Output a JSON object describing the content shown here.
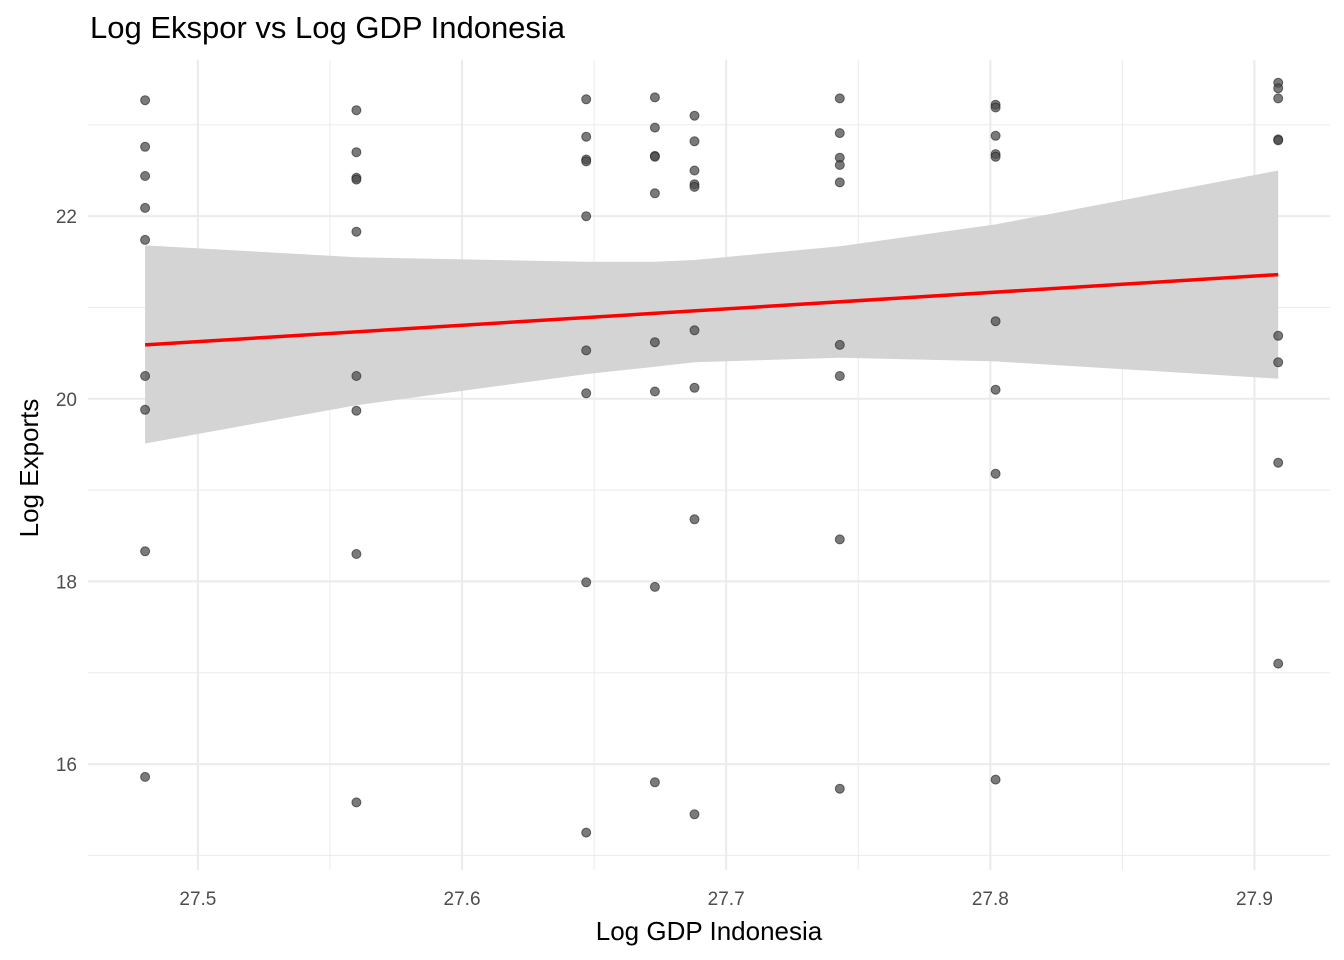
{
  "chart_data": {
    "type": "scatter",
    "title": "Log Ekspor vs Log GDP Indonesia",
    "xlabel": "Log GDP Indonesia",
    "ylabel": "Log Exports",
    "xlim": [
      27.4584,
      27.9286
    ],
    "ylim": [
      14.84,
      23.71
    ],
    "x_ticks": [
      27.5,
      27.6,
      27.7,
      27.8,
      27.9
    ],
    "x_tick_labels": [
      "27.5",
      "27.6",
      "27.7",
      "27.8",
      "27.9"
    ],
    "y_ticks": [
      16,
      18,
      20,
      22
    ],
    "y_tick_labels": [
      "16",
      "18",
      "20",
      "22"
    ],
    "grid": true,
    "legend": "none",
    "colors": {
      "points": "#4d4d4d",
      "fit_line": "#ff0000",
      "ribbon": "#d3d3d3",
      "grid": "#ebebeb"
    },
    "points": [
      {
        "x": 27.48,
        "y": 23.27
      },
      {
        "x": 27.48,
        "y": 22.76
      },
      {
        "x": 27.48,
        "y": 22.44
      },
      {
        "x": 27.48,
        "y": 22.09
      },
      {
        "x": 27.48,
        "y": 21.74
      },
      {
        "x": 27.48,
        "y": 20.25
      },
      {
        "x": 27.48,
        "y": 19.88
      },
      {
        "x": 27.48,
        "y": 18.33
      },
      {
        "x": 27.48,
        "y": 15.86
      },
      {
        "x": 27.56,
        "y": 23.16
      },
      {
        "x": 27.56,
        "y": 22.7
      },
      {
        "x": 27.56,
        "y": 22.42
      },
      {
        "x": 27.56,
        "y": 22.4
      },
      {
        "x": 27.56,
        "y": 21.83
      },
      {
        "x": 27.56,
        "y": 20.25
      },
      {
        "x": 27.56,
        "y": 19.87
      },
      {
        "x": 27.56,
        "y": 18.3
      },
      {
        "x": 27.56,
        "y": 15.58
      },
      {
        "x": 27.647,
        "y": 23.28
      },
      {
        "x": 27.647,
        "y": 22.87
      },
      {
        "x": 27.647,
        "y": 22.62
      },
      {
        "x": 27.647,
        "y": 22.6
      },
      {
        "x": 27.647,
        "y": 22.0
      },
      {
        "x": 27.647,
        "y": 20.53
      },
      {
        "x": 27.647,
        "y": 20.06
      },
      {
        "x": 27.647,
        "y": 17.99
      },
      {
        "x": 27.647,
        "y": 15.25
      },
      {
        "x": 27.673,
        "y": 23.3
      },
      {
        "x": 27.673,
        "y": 22.97
      },
      {
        "x": 27.673,
        "y": 22.66
      },
      {
        "x": 27.673,
        "y": 22.65
      },
      {
        "x": 27.673,
        "y": 22.25
      },
      {
        "x": 27.673,
        "y": 20.62
      },
      {
        "x": 27.673,
        "y": 20.08
      },
      {
        "x": 27.673,
        "y": 17.94
      },
      {
        "x": 27.673,
        "y": 15.8
      },
      {
        "x": 27.688,
        "y": 23.1
      },
      {
        "x": 27.688,
        "y": 22.82
      },
      {
        "x": 27.688,
        "y": 22.5
      },
      {
        "x": 27.688,
        "y": 22.35
      },
      {
        "x": 27.688,
        "y": 22.32
      },
      {
        "x": 27.688,
        "y": 20.75
      },
      {
        "x": 27.688,
        "y": 20.12
      },
      {
        "x": 27.688,
        "y": 18.68
      },
      {
        "x": 27.688,
        "y": 15.45
      },
      {
        "x": 27.743,
        "y": 23.29
      },
      {
        "x": 27.743,
        "y": 22.91
      },
      {
        "x": 27.743,
        "y": 22.64
      },
      {
        "x": 27.743,
        "y": 22.56
      },
      {
        "x": 27.743,
        "y": 22.37
      },
      {
        "x": 27.743,
        "y": 20.59
      },
      {
        "x": 27.743,
        "y": 20.25
      },
      {
        "x": 27.743,
        "y": 18.46
      },
      {
        "x": 27.743,
        "y": 15.73
      },
      {
        "x": 27.802,
        "y": 23.22
      },
      {
        "x": 27.802,
        "y": 23.19
      },
      {
        "x": 27.802,
        "y": 22.88
      },
      {
        "x": 27.802,
        "y": 22.68
      },
      {
        "x": 27.802,
        "y": 22.65
      },
      {
        "x": 27.802,
        "y": 20.85
      },
      {
        "x": 27.802,
        "y": 20.1
      },
      {
        "x": 27.802,
        "y": 19.18
      },
      {
        "x": 27.802,
        "y": 15.83
      },
      {
        "x": 27.909,
        "y": 23.46
      },
      {
        "x": 27.909,
        "y": 23.4
      },
      {
        "x": 27.909,
        "y": 23.29
      },
      {
        "x": 27.909,
        "y": 22.84
      },
      {
        "x": 27.909,
        "y": 22.83
      },
      {
        "x": 27.909,
        "y": 20.69
      },
      {
        "x": 27.909,
        "y": 20.4
      },
      {
        "x": 27.909,
        "y": 19.3
      },
      {
        "x": 27.909,
        "y": 17.1
      }
    ],
    "fit_line": {
      "x": [
        27.48,
        27.909
      ],
      "y": [
        20.59,
        21.36
      ]
    },
    "confidence_band": {
      "x": [
        27.48,
        27.56,
        27.647,
        27.673,
        27.688,
        27.743,
        27.802,
        27.909
      ],
      "upper": [
        21.68,
        21.55,
        21.5,
        21.5,
        21.52,
        21.67,
        21.91,
        22.5
      ],
      "lower": [
        19.51,
        19.93,
        20.27,
        20.35,
        20.4,
        20.45,
        20.41,
        20.22
      ]
    }
  }
}
